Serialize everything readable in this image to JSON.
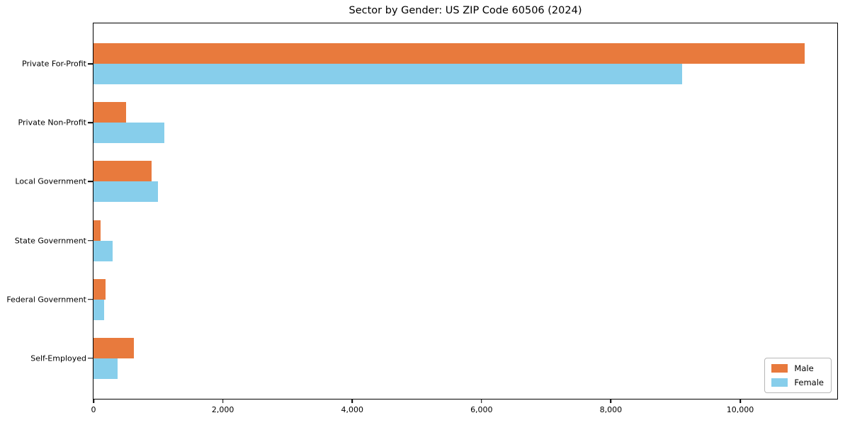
{
  "chart_data": {
    "type": "bar",
    "orientation": "horizontal",
    "title": "Sector by Gender: US ZIP Code 60506 (2024)",
    "xlabel": "",
    "ylabel": "",
    "categories": [
      "Private For-Profit",
      "Private Non-Profit",
      "Local Government",
      "State Government",
      "Federal Government",
      "Self-Employed"
    ],
    "series": [
      {
        "name": "Male",
        "color": "#e87a3d",
        "values": [
          11000,
          500,
          900,
          110,
          190,
          620
        ]
      },
      {
        "name": "Female",
        "color": "#87ceeb",
        "values": [
          9100,
          1100,
          1000,
          300,
          160,
          370
        ]
      }
    ],
    "xlim": [
      0,
      11500
    ],
    "xticks": [
      0,
      2000,
      4000,
      6000,
      8000,
      10000
    ],
    "grid": false,
    "legend_position": "lower right"
  }
}
